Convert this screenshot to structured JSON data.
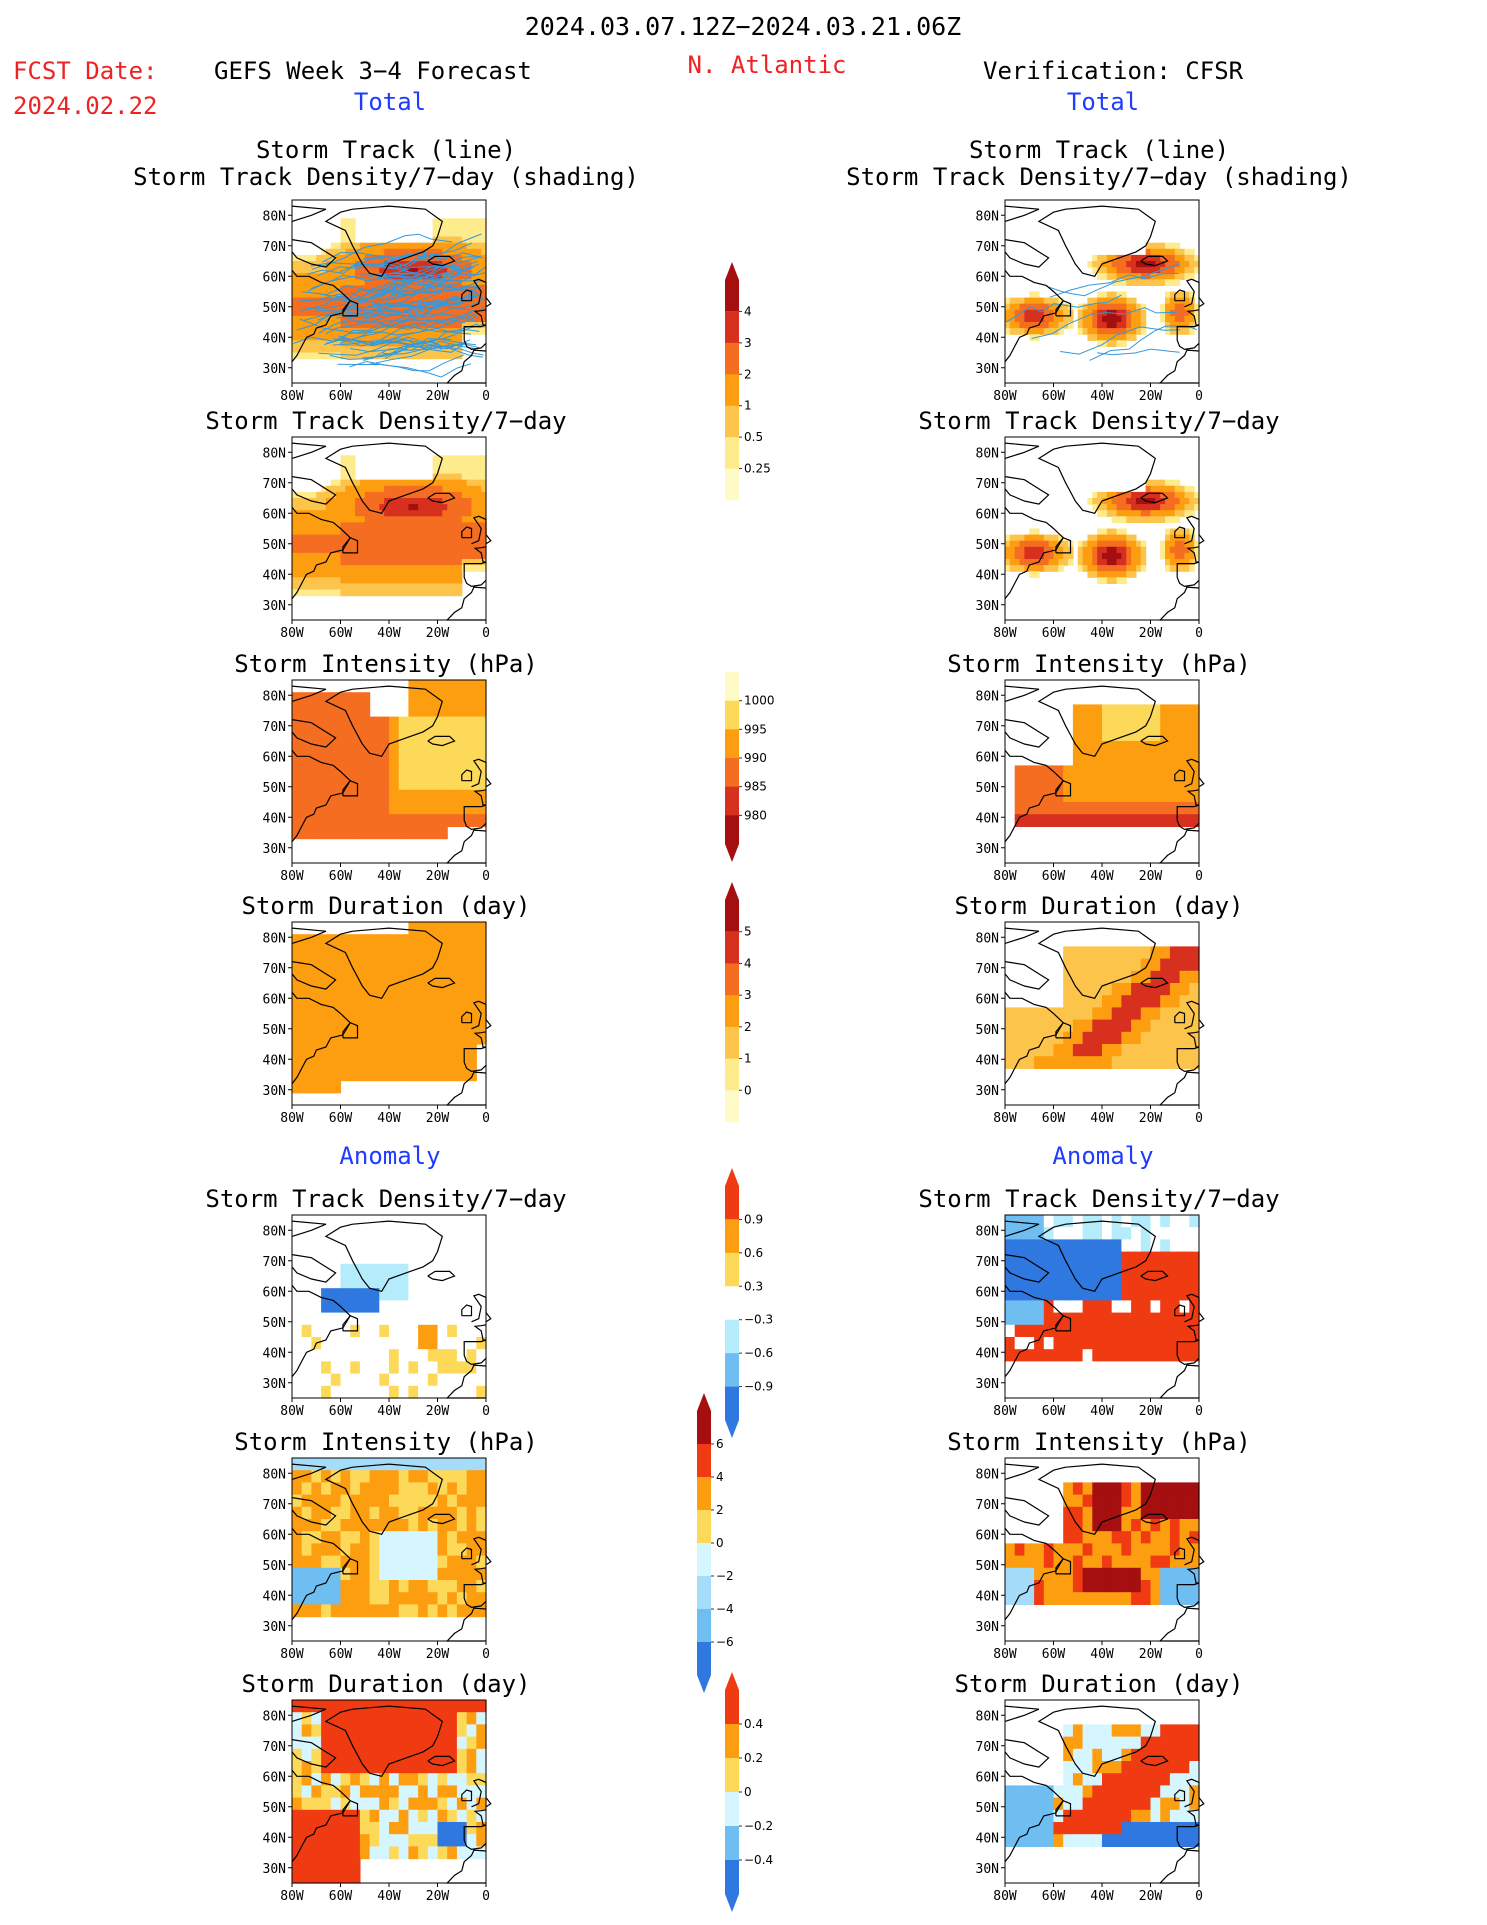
{
  "header": {
    "period": "2024.03.07.12Z−2024.03.21.06Z",
    "fcst_label": "FCST Date:",
    "fcst_date": "2024.02.22",
    "model": "GEFS Week 3−4 Forecast",
    "region": "N. Atlantic",
    "verification": "Verification: CFSR",
    "left_total": "Total",
    "right_total": "Total",
    "left_anomaly": "Anomaly",
    "right_anomaly": "Anomaly"
  },
  "colors": {
    "accent_red": "#ee2222",
    "accent_blue": "#1f3bff",
    "land_outline": "#000000",
    "track_line": "#3399dd"
  },
  "chart_data": [
    {
      "type": "heatmap",
      "id": "fc_track",
      "column": "forecast",
      "title": "Storm Track (line)\nStorm Track Density/7−day (shading)",
      "xticks": [
        "80W",
        "60W",
        "40W",
        "20W",
        "0"
      ],
      "yticks": [
        "80N",
        "70N",
        "60N",
        "50N",
        "40N",
        "30N"
      ],
      "xlim": [
        -80,
        0
      ],
      "ylim": [
        25,
        85
      ],
      "colorbar": "cb_density",
      "pattern": "fc_density",
      "tracks": "dense"
    },
    {
      "type": "heatmap",
      "id": "ob_track",
      "column": "verification",
      "title": "Storm Track (line)\nStorm Track Density/7−day (shading)",
      "xticks": [
        "80W",
        "60W",
        "40W",
        "20W",
        "0"
      ],
      "yticks": [
        "80N",
        "70N",
        "60N",
        "50N",
        "40N",
        "30N"
      ],
      "xlim": [
        -80,
        0
      ],
      "ylim": [
        25,
        85
      ],
      "colorbar": "cb_density",
      "pattern": "ob_density",
      "tracks": "sparse"
    },
    {
      "type": "heatmap",
      "id": "fc_density",
      "column": "forecast",
      "title": "Storm Track Density/7−day",
      "xticks": [
        "80W",
        "60W",
        "40W",
        "20W",
        "0"
      ],
      "yticks": [
        "80N",
        "70N",
        "60N",
        "50N",
        "40N",
        "30N"
      ],
      "xlim": [
        -80,
        0
      ],
      "ylim": [
        25,
        85
      ],
      "colorbar": "cb_density",
      "pattern": "fc_density"
    },
    {
      "type": "heatmap",
      "id": "ob_density",
      "column": "verification",
      "title": "Storm Track Density/7−day",
      "xticks": [
        "80W",
        "60W",
        "40W",
        "20W",
        "0"
      ],
      "yticks": [
        "80N",
        "70N",
        "60N",
        "50N",
        "40N",
        "30N"
      ],
      "xlim": [
        -80,
        0
      ],
      "ylim": [
        25,
        85
      ],
      "colorbar": "cb_density",
      "pattern": "ob_density"
    },
    {
      "type": "heatmap",
      "id": "fc_intensity",
      "column": "forecast",
      "title": "Storm Intensity (hPa)",
      "xticks": [
        "80W",
        "60W",
        "40W",
        "20W",
        "0"
      ],
      "yticks": [
        "80N",
        "70N",
        "60N",
        "50N",
        "40N",
        "30N"
      ],
      "xlim": [
        -80,
        0
      ],
      "ylim": [
        25,
        85
      ],
      "colorbar": "cb_intensity",
      "pattern": "fc_intensity"
    },
    {
      "type": "heatmap",
      "id": "ob_intensity",
      "column": "verification",
      "title": "Storm Intensity (hPa)",
      "xticks": [
        "80W",
        "60W",
        "40W",
        "20W",
        "0"
      ],
      "yticks": [
        "80N",
        "70N",
        "60N",
        "50N",
        "40N",
        "30N"
      ],
      "xlim": [
        -80,
        0
      ],
      "ylim": [
        25,
        85
      ],
      "colorbar": "cb_intensity",
      "pattern": "ob_intensity"
    },
    {
      "type": "heatmap",
      "id": "fc_duration",
      "column": "forecast",
      "title": "Storm Duration (day)",
      "xticks": [
        "80W",
        "60W",
        "40W",
        "20W",
        "0"
      ],
      "yticks": [
        "80N",
        "70N",
        "60N",
        "50N",
        "40N",
        "30N"
      ],
      "xlim": [
        -80,
        0
      ],
      "ylim": [
        25,
        85
      ],
      "colorbar": "cb_duration",
      "pattern": "fc_duration"
    },
    {
      "type": "heatmap",
      "id": "ob_duration",
      "column": "verification",
      "title": "Storm Duration (day)",
      "xticks": [
        "80W",
        "60W",
        "40W",
        "20W",
        "0"
      ],
      "yticks": [
        "80N",
        "70N",
        "60N",
        "50N",
        "40N",
        "30N"
      ],
      "xlim": [
        -80,
        0
      ],
      "ylim": [
        25,
        85
      ],
      "colorbar": "cb_duration",
      "pattern": "ob_duration"
    },
    {
      "type": "heatmap",
      "id": "fc_density_anom",
      "column": "forecast",
      "title": "Storm Track Density/7−day",
      "xticks": [
        "80W",
        "60W",
        "40W",
        "20W",
        "0"
      ],
      "yticks": [
        "80N",
        "70N",
        "60N",
        "50N",
        "40N",
        "30N"
      ],
      "xlim": [
        -80,
        0
      ],
      "ylim": [
        25,
        85
      ],
      "colorbar": "cb_density_anom",
      "pattern": "fc_density_anom"
    },
    {
      "type": "heatmap",
      "id": "ob_density_anom",
      "column": "verification",
      "title": "Storm Track Density/7−day",
      "xticks": [
        "80W",
        "60W",
        "40W",
        "20W",
        "0"
      ],
      "yticks": [
        "80N",
        "70N",
        "60N",
        "50N",
        "40N",
        "30N"
      ],
      "xlim": [
        -80,
        0
      ],
      "ylim": [
        25,
        85
      ],
      "colorbar": "cb_density_anom",
      "pattern": "ob_density_anom"
    },
    {
      "type": "heatmap",
      "id": "fc_intensity_anom",
      "column": "forecast",
      "title": "Storm Intensity (hPa)",
      "xticks": [
        "80W",
        "60W",
        "40W",
        "20W",
        "0"
      ],
      "yticks": [
        "80N",
        "70N",
        "60N",
        "50N",
        "40N",
        "30N"
      ],
      "xlim": [
        -80,
        0
      ],
      "ylim": [
        25,
        85
      ],
      "colorbar": "cb_intensity_anom",
      "pattern": "fc_intensity_anom"
    },
    {
      "type": "heatmap",
      "id": "ob_intensity_anom",
      "column": "verification",
      "title": "Storm Intensity (hPa)",
      "xticks": [
        "80W",
        "60W",
        "40W",
        "20W",
        "0"
      ],
      "yticks": [
        "80N",
        "70N",
        "60N",
        "50N",
        "40N",
        "30N"
      ],
      "xlim": [
        -80,
        0
      ],
      "ylim": [
        25,
        85
      ],
      "colorbar": "cb_intensity_anom",
      "pattern": "ob_intensity_anom"
    },
    {
      "type": "heatmap",
      "id": "fc_duration_anom",
      "column": "forecast",
      "title": "Storm Duration (day)",
      "xticks": [
        "80W",
        "60W",
        "40W",
        "20W",
        "0"
      ],
      "yticks": [
        "80N",
        "70N",
        "60N",
        "50N",
        "40N",
        "30N"
      ],
      "xlim": [
        -80,
        0
      ],
      "ylim": [
        25,
        85
      ],
      "colorbar": "cb_duration_anom",
      "pattern": "fc_duration_anom"
    },
    {
      "type": "heatmap",
      "id": "ob_duration_anom",
      "column": "verification",
      "title": "Storm Duration (day)",
      "xticks": [
        "80W",
        "60W",
        "40W",
        "20W",
        "0"
      ],
      "yticks": [
        "80N",
        "70N",
        "60N",
        "50N",
        "40N",
        "30N"
      ],
      "xlim": [
        -80,
        0
      ],
      "ylim": [
        25,
        85
      ],
      "colorbar": "cb_duration_anom",
      "pattern": "ob_duration_anom"
    }
  ],
  "colorbars": {
    "cb_density": {
      "labels": [
        "4",
        "3",
        "2",
        "1",
        "0.5",
        "0.25"
      ],
      "colors": [
        "#a50f0f",
        "#d7301f",
        "#f46d20",
        "#fd9e10",
        "#fcc44a",
        "#fdeb8c",
        "#fffbc8"
      ],
      "tip_top": true,
      "tip_bottom": false
    },
    "cb_intensity": {
      "labels": [
        "1000",
        "995",
        "990",
        "985",
        "980"
      ],
      "colors": [
        "#fffbc8",
        "#fdd95a",
        "#fd9e10",
        "#f46d20",
        "#d7301f",
        "#a50f0f"
      ],
      "tip_top": false,
      "tip_bottom": true
    },
    "cb_duration": {
      "labels": [
        "5",
        "4",
        "3",
        "2",
        "1",
        "0"
      ],
      "colors": [
        "#a50f0f",
        "#d7301f",
        "#f46d20",
        "#fd9e10",
        "#fcc44a",
        "#fdeb8c",
        "#fffbc8"
      ],
      "tip_top": true,
      "tip_bottom": false
    },
    "cb_density_anom": {
      "labels": [
        "0.9",
        "0.6",
        "0.3",
        "−0.3",
        "−0.6",
        "−0.9"
      ],
      "colors": [
        "#f03a12",
        "#fd9e10",
        "#fdd95a",
        "#ffffff",
        "#b4ecfb",
        "#6fbef2",
        "#2f78e0"
      ],
      "tip_top": true,
      "tip_bottom": true
    },
    "cb_intensity_anom": {
      "labels": [
        "6",
        "4",
        "2",
        "0",
        "−2",
        "−4",
        "−6"
      ],
      "colors": [
        "#a50f0f",
        "#f03a12",
        "#fd9e10",
        "#fdd95a",
        "#d6f6ff",
        "#a4dcfa",
        "#6fbef2",
        "#2f78e0"
      ],
      "tip_top": true,
      "tip_bottom": true
    },
    "cb_duration_anom": {
      "labels": [
        "0.4",
        "0.2",
        "0",
        "−0.2",
        "−0.4"
      ],
      "colors": [
        "#f03a12",
        "#fd9e10",
        "#fdd95a",
        "#d6f6ff",
        "#6fbef2",
        "#2f78e0"
      ],
      "tip_top": true,
      "tip_bottom": true
    }
  }
}
